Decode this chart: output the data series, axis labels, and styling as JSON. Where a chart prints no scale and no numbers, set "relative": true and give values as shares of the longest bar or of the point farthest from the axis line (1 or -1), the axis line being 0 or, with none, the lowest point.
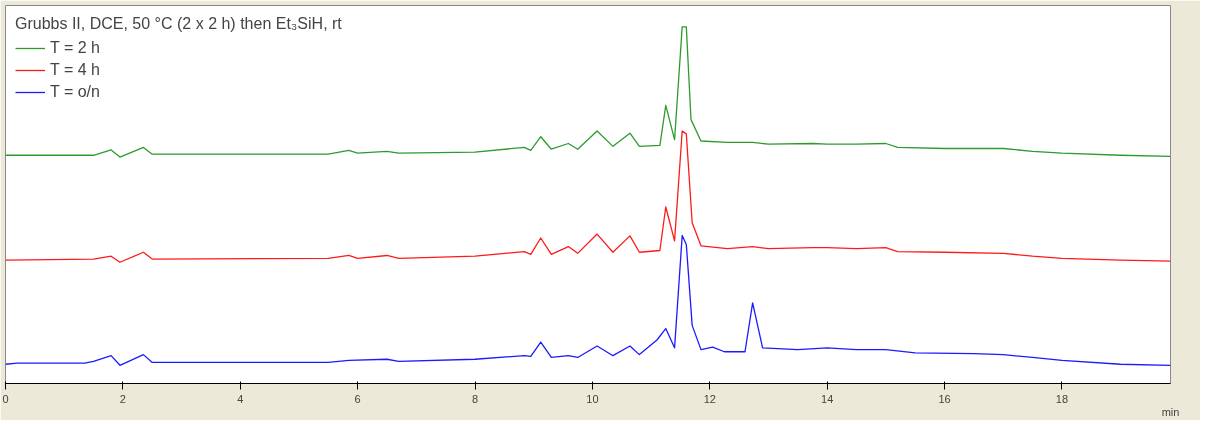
{
  "chart_data": {
    "type": "line",
    "relative": true,
    "xlabel": "min",
    "legend_title": "Grubbs II, DCE, 50 °C (2 x 2 h) then Et₃SiH, rt",
    "legend": "top left",
    "grid": false,
    "xlim": [
      0,
      19.85
    ],
    "xticks": [
      0,
      2,
      4,
      6,
      8,
      10,
      12,
      14,
      16,
      18
    ],
    "series": [
      {
        "name": "T = 2 h",
        "color": "#2e9a2e",
        "x": [
          0,
          1.5,
          1.8,
          1.95,
          2.35,
          2.5,
          5.5,
          5.85,
          6.0,
          6.5,
          6.7,
          8.0,
          8.84,
          8.95,
          9.12,
          9.3,
          9.59,
          9.75,
          10.08,
          10.35,
          10.64,
          10.8,
          11.15,
          11.25,
          11.4,
          11.53,
          11.6,
          11.68,
          11.85,
          12.3,
          12.73,
          13.0,
          13.75,
          14.0,
          14.5,
          15.0,
          15.2,
          16.0,
          17.0,
          17.5,
          18.0,
          19.0,
          19.85
        ],
        "values": [
          0.64,
          0.64,
          0.655,
          0.635,
          0.662,
          0.643,
          0.643,
          0.654,
          0.646,
          0.651,
          0.646,
          0.649,
          0.662,
          0.654,
          0.692,
          0.657,
          0.673,
          0.657,
          0.708,
          0.665,
          0.702,
          0.665,
          0.668,
          0.78,
          0.684,
          1.0,
          1.0,
          0.74,
          0.68,
          0.676,
          0.676,
          0.671,
          0.673,
          0.671,
          0.671,
          0.673,
          0.662,
          0.659,
          0.659,
          0.651,
          0.646,
          0.64,
          0.637
        ]
      },
      {
        "name": "T = 4 h",
        "color": "#ff1a1a",
        "x": [
          0,
          1.5,
          1.8,
          1.95,
          2.35,
          2.5,
          5.5,
          5.85,
          6.0,
          6.5,
          6.7,
          8.0,
          8.84,
          8.95,
          9.12,
          9.3,
          9.59,
          9.75,
          10.08,
          10.35,
          10.64,
          10.8,
          11.15,
          11.25,
          11.4,
          11.53,
          11.6,
          11.7,
          11.85,
          12.3,
          12.73,
          13.0,
          13.75,
          14.0,
          14.5,
          15.0,
          15.2,
          16.0,
          17.0,
          17.5,
          18.0,
          19.0,
          19.85
        ],
        "values": [
          0.346,
          0.349,
          0.357,
          0.34,
          0.368,
          0.349,
          0.351,
          0.359,
          0.351,
          0.359,
          0.351,
          0.357,
          0.37,
          0.362,
          0.408,
          0.362,
          0.384,
          0.365,
          0.419,
          0.368,
          0.414,
          0.368,
          0.373,
          0.495,
          0.4,
          0.708,
          0.7,
          0.451,
          0.386,
          0.378,
          0.384,
          0.378,
          0.381,
          0.381,
          0.378,
          0.381,
          0.37,
          0.368,
          0.365,
          0.357,
          0.351,
          0.346,
          0.343
        ]
      },
      {
        "name": "T = o/n",
        "color": "#1a1aff",
        "x": [
          0,
          0.2,
          1.35,
          1.5,
          1.8,
          1.95,
          2.35,
          2.5,
          5.5,
          5.85,
          6.5,
          6.7,
          8.0,
          8.84,
          8.95,
          9.12,
          9.3,
          9.59,
          9.75,
          10.08,
          10.35,
          10.64,
          10.8,
          11.1,
          11.25,
          11.4,
          11.53,
          11.6,
          11.7,
          11.85,
          12.05,
          12.25,
          12.6,
          12.73,
          12.9,
          13.5,
          14.0,
          14.5,
          15.0,
          15.5,
          16.5,
          17.0,
          17.5,
          18.0,
          19.0,
          19.85
        ],
        "values": [
          0.054,
          0.057,
          0.057,
          0.062,
          0.078,
          0.051,
          0.081,
          0.059,
          0.059,
          0.065,
          0.068,
          0.062,
          0.068,
          0.078,
          0.076,
          0.116,
          0.073,
          0.078,
          0.073,
          0.105,
          0.078,
          0.105,
          0.081,
          0.122,
          0.154,
          0.1,
          0.415,
          0.39,
          0.163,
          0.095,
          0.102,
          0.089,
          0.089,
          0.226,
          0.1,
          0.095,
          0.1,
          0.095,
          0.095,
          0.086,
          0.084,
          0.081,
          0.073,
          0.065,
          0.054,
          0.051
        ]
      }
    ]
  }
}
